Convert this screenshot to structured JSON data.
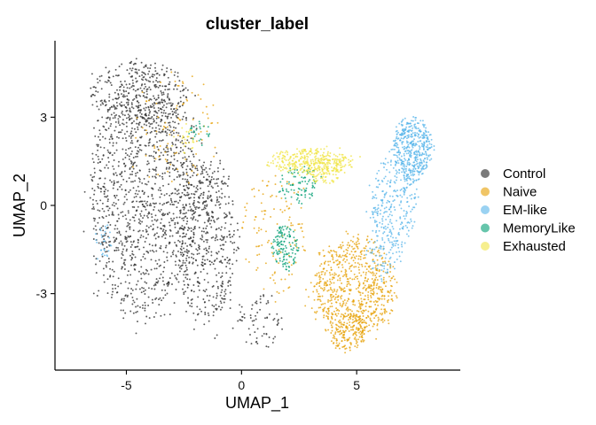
{
  "chart_data": {
    "type": "scatter",
    "title": "cluster_label",
    "xlabel": "UMAP_1",
    "ylabel": "UMAP_2",
    "xlim": [
      -8.1,
      9.5
    ],
    "ylim": [
      -5.6,
      5.6
    ],
    "xticks": [
      {
        "value": -5,
        "label": "-5"
      },
      {
        "value": 0,
        "label": "0"
      },
      {
        "value": 5,
        "label": "5"
      }
    ],
    "yticks": [
      {
        "value": -3,
        "label": "-3"
      },
      {
        "value": 0,
        "label": "0"
      },
      {
        "value": 3,
        "label": "3"
      }
    ],
    "grid": false,
    "legend_position": "right",
    "series": [
      {
        "name": "Control",
        "color": "#333333",
        "regions": [
          {
            "cx": -4.2,
            "cy": 0.3,
            "rx": 2.6,
            "ry": 4.3,
            "count": 1300
          },
          {
            "cx": -1.5,
            "cy": -1.2,
            "rx": 1.4,
            "ry": 3.0,
            "count": 500
          },
          {
            "cx": -4.5,
            "cy": 3.8,
            "rx": 2.2,
            "ry": 1.2,
            "count": 300
          },
          {
            "cx": 0.8,
            "cy": -4.0,
            "rx": 1.1,
            "ry": 1.0,
            "count": 70
          }
        ]
      },
      {
        "name": "Naive",
        "color": "#E69F00",
        "regions": [
          {
            "cx": 4.9,
            "cy": -2.8,
            "rx": 1.9,
            "ry": 1.8,
            "count": 750
          },
          {
            "cx": 4.6,
            "cy": -4.3,
            "rx": 0.9,
            "ry": 0.7,
            "count": 130
          },
          {
            "cx": 1.5,
            "cy": -1.0,
            "rx": 1.6,
            "ry": 2.2,
            "count": 120
          },
          {
            "cx": -2.8,
            "cy": 2.5,
            "rx": 2.0,
            "ry": 2.0,
            "count": 90
          }
        ]
      },
      {
        "name": "EM-like",
        "color": "#56B4E9",
        "regions": [
          {
            "cx": 7.4,
            "cy": 1.9,
            "rx": 0.9,
            "ry": 1.1,
            "count": 450
          },
          {
            "cx": 6.6,
            "cy": 0.0,
            "rx": 1.1,
            "ry": 1.7,
            "count": 250
          },
          {
            "cx": 6.2,
            "cy": -1.6,
            "rx": 0.8,
            "ry": 0.9,
            "count": 80
          },
          {
            "cx": -6.0,
            "cy": -1.2,
            "rx": 0.4,
            "ry": 0.7,
            "count": 30
          }
        ]
      },
      {
        "name": "MemoryLike",
        "color": "#009E73",
        "regions": [
          {
            "cx": 1.9,
            "cy": -1.4,
            "rx": 0.6,
            "ry": 0.8,
            "count": 130
          },
          {
            "cx": 2.5,
            "cy": 0.7,
            "rx": 0.9,
            "ry": 0.7,
            "count": 90
          },
          {
            "cx": -1.8,
            "cy": 2.5,
            "rx": 0.5,
            "ry": 0.4,
            "count": 25
          }
        ]
      },
      {
        "name": "Exhausted",
        "color": "#F0E442",
        "regions": [
          {
            "cx": 3.0,
            "cy": 1.5,
            "rx": 2.0,
            "ry": 0.45,
            "count": 320
          },
          {
            "cx": 3.6,
            "cy": 1.2,
            "rx": 0.9,
            "ry": 0.5,
            "count": 110
          },
          {
            "cx": -2.5,
            "cy": 2.2,
            "rx": 0.6,
            "ry": 0.5,
            "count": 25
          }
        ]
      }
    ]
  }
}
